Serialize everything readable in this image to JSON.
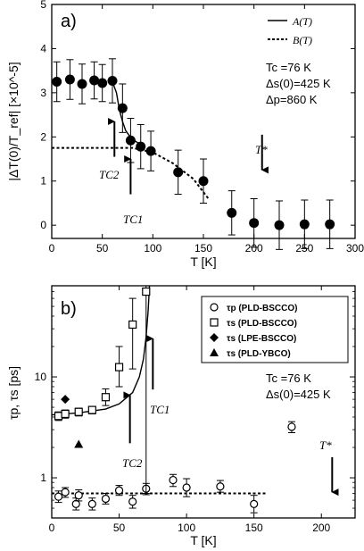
{
  "chart_data": [
    {
      "type": "scatter",
      "panel_label": "a)",
      "xlabel": "T [K]",
      "ylabel": "|ΔT(0)/T_ref| [×10^-5]",
      "xlim": [
        0,
        300
      ],
      "ylim": [
        -0.3,
        5
      ],
      "xticks": [
        0,
        50,
        100,
        150,
        200,
        250,
        300
      ],
      "yticks": [
        0,
        1,
        2,
        3,
        4,
        5
      ],
      "legend": {
        "placement": "top-right",
        "entries": [
          "A(T)",
          "B(T)"
        ]
      },
      "params": [
        "Tc =76 K",
        "Δs(0)=425 K",
        "Δp=860 K"
      ],
      "arrow_labels": [
        "TC2",
        "TC1",
        "T*"
      ],
      "points": [
        {
          "x": 5,
          "y": 3.25,
          "err": 0.45
        },
        {
          "x": 18,
          "y": 3.3,
          "err": 0.45
        },
        {
          "x": 30,
          "y": 3.2,
          "err": 0.45
        },
        {
          "x": 42,
          "y": 3.28,
          "err": 0.42
        },
        {
          "x": 50,
          "y": 3.22,
          "err": 0.42
        },
        {
          "x": 60,
          "y": 3.27,
          "err": 0.5
        },
        {
          "x": 70,
          "y": 2.65,
          "err": 0.55
        },
        {
          "x": 78,
          "y": 1.92,
          "err": 0.5
        },
        {
          "x": 88,
          "y": 1.78,
          "err": 0.5
        },
        {
          "x": 98,
          "y": 1.68,
          "err": 0.45
        },
        {
          "x": 125,
          "y": 1.2,
          "err": 0.5
        },
        {
          "x": 150,
          "y": 1.0,
          "err": 0.5
        },
        {
          "x": 178,
          "y": 0.28,
          "err": 0.5
        },
        {
          "x": 200,
          "y": 0.05,
          "err": 0.55
        },
        {
          "x": 225,
          "y": 0.0,
          "err": 0.55
        },
        {
          "x": 250,
          "y": 0.02,
          "err": 0.55
        },
        {
          "x": 275,
          "y": 0.02,
          "err": 0.55
        }
      ],
      "curve_A": [
        [
          60,
          3.25
        ],
        [
          64,
          3.0
        ],
        [
          67,
          2.6
        ],
        [
          70,
          2.35
        ],
        [
          73,
          2.15
        ],
        [
          76,
          2.05
        ],
        [
          80,
          1.95
        ],
        [
          86,
          1.85
        ],
        [
          92,
          1.75
        ]
      ],
      "curve_B": [
        [
          0,
          1.75
        ],
        [
          80,
          1.75
        ],
        [
          100,
          1.65
        ],
        [
          120,
          1.4
        ],
        [
          140,
          1.05
        ],
        [
          155,
          0.6
        ]
      ],
      "arrows": [
        {
          "label": "TC2",
          "x": 62,
          "y_from": 1.55,
          "y_to": 2.35
        },
        {
          "label": "TC1",
          "x": 78,
          "y_from": 0.7,
          "y_to": 1.5
        },
        {
          "label": "T*",
          "x": 208,
          "y_from": 2.05,
          "y_to": 1.25
        }
      ]
    },
    {
      "type": "scatter",
      "panel_label": "b)",
      "xlabel": "T [K]",
      "ylabel": "τp, τs [ps]",
      "yscale": "log",
      "xlim": [
        0,
        225
      ],
      "ylim": [
        0.4,
        80
      ],
      "xticks": [
        0,
        50,
        100,
        150,
        200
      ],
      "yticks": [
        1,
        10
      ],
      "legend": {
        "placement": "top-right",
        "entries": [
          "τp (PLD-BSCCO)",
          "τs (PLD-BSCCO)",
          "τs (LPE-BSCCO)",
          "τs (PLD-YBCO)"
        ]
      },
      "params": [
        "Tc =76 K",
        "Δs(0)=425 K"
      ],
      "arrow_labels": [
        "TC2",
        "TC1",
        "T*"
      ],
      "series": [
        {
          "name": "τp (PLD-BSCCO)",
          "marker": "open-circle",
          "points": [
            {
              "x": 5,
              "y": 0.65,
              "lo": 0.57,
              "hi": 0.74
            },
            {
              "x": 10,
              "y": 0.72,
              "lo": 0.64,
              "hi": 0.8
            },
            {
              "x": 18,
              "y": 0.55,
              "lo": 0.48,
              "hi": 0.63
            },
            {
              "x": 20,
              "y": 0.67,
              "lo": 0.59,
              "hi": 0.76
            },
            {
              "x": 30,
              "y": 0.55,
              "lo": 0.48,
              "hi": 0.63
            },
            {
              "x": 40,
              "y": 0.62,
              "lo": 0.55,
              "hi": 0.7
            },
            {
              "x": 50,
              "y": 0.75,
              "lo": 0.67,
              "hi": 0.84
            },
            {
              "x": 60,
              "y": 0.58,
              "lo": 0.5,
              "hi": 0.67
            },
            {
              "x": 70,
              "y": 0.78,
              "lo": 0.68,
              "hi": 0.88
            },
            {
              "x": 90,
              "y": 0.95,
              "lo": 0.82,
              "hi": 1.08
            },
            {
              "x": 100,
              "y": 0.8,
              "lo": 0.65,
              "hi": 0.98
            },
            {
              "x": 125,
              "y": 0.82,
              "lo": 0.72,
              "hi": 0.94
            },
            {
              "x": 150,
              "y": 0.55,
              "lo": 0.45,
              "hi": 0.67
            },
            {
              "x": 178,
              "y": 3.2,
              "lo": 2.8,
              "hi": 3.6
            }
          ]
        },
        {
          "name": "τs (PLD-BSCCO)",
          "marker": "open-square",
          "points": [
            {
              "x": 5,
              "y": 4.1,
              "lo": 3.7,
              "hi": 4.5
            },
            {
              "x": 10,
              "y": 4.3,
              "lo": 3.9,
              "hi": 4.7
            },
            {
              "x": 20,
              "y": 4.5,
              "lo": 4.1,
              "hi": 4.9
            },
            {
              "x": 30,
              "y": 4.7,
              "lo": 4.3,
              "hi": 5.1
            },
            {
              "x": 40,
              "y": 6.3,
              "lo": 5.2,
              "hi": 7.6
            },
            {
              "x": 50,
              "y": 12.5,
              "lo": 8,
              "hi": 20
            },
            {
              "x": 60,
              "y": 33,
              "lo": 12,
              "hi": 60
            },
            {
              "x": 70,
              "y": 70,
              "lo": 0.7,
              "hi": 80
            }
          ]
        },
        {
          "name": "τs (LPE-BSCCO)",
          "marker": "filled-diamond",
          "points": [
            {
              "x": 10,
              "y": 6.0
            }
          ]
        },
        {
          "name": "τs (PLD-YBCO)",
          "marker": "filled-triangle",
          "points": [
            {
              "x": 20,
              "y": 2.15
            }
          ]
        }
      ],
      "fit_curve": [
        [
          0,
          4.2
        ],
        [
          20,
          4.4
        ],
        [
          40,
          4.8
        ],
        [
          50,
          5.4
        ],
        [
          60,
          7.0
        ],
        [
          65,
          10.0
        ],
        [
          68,
          15.0
        ],
        [
          70,
          25.0
        ],
        [
          71.5,
          45.0
        ],
        [
          72.5,
          80.0
        ]
      ],
      "fit_line_p": [
        [
          0,
          0.7
        ],
        [
          160,
          0.7
        ]
      ],
      "arrows": [
        {
          "label": "TC2",
          "x": 58,
          "y_from": 2.2,
          "y_to": 6.6
        },
        {
          "label": "TC1",
          "x": 75,
          "y_from": 7.5,
          "y_to": 24
        },
        {
          "label": "T*",
          "x": 208,
          "y_from": 1.6,
          "y_to": 0.72
        }
      ]
    }
  ]
}
